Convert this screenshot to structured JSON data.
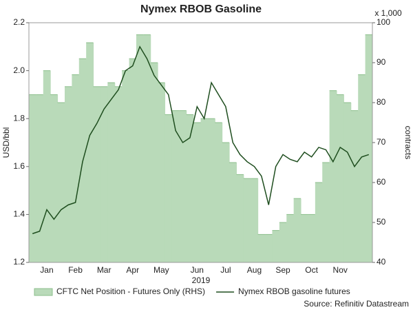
{
  "chart_data": {
    "type": "bar-line",
    "title": "Nymex RBOB Gasoline",
    "xlabel": "2019",
    "ylabel": "USD/bbl",
    "y2label": "contracts",
    "y2unit": "x 1,000",
    "source": "Source: Refinitiv Datastream",
    "legend": "bottom",
    "categories": [
      null,
      null,
      "Jan",
      null,
      null,
      null,
      "Feb",
      null,
      null,
      null,
      "Mar",
      null,
      null,
      null,
      "Apr",
      null,
      null,
      null,
      "May",
      null,
      null,
      null,
      null,
      "Jun",
      null,
      null,
      null,
      "Jul",
      null,
      null,
      null,
      "Aug",
      null,
      null,
      null,
      "Sep",
      null,
      null,
      null,
      "Oct",
      null,
      null,
      null,
      "Nov",
      null,
      null,
      null,
      null
    ],
    "ylim": [
      1.2,
      2.2
    ],
    "yticks": [
      1.2,
      1.4,
      1.6,
      1.8,
      {
        "value": 2,
        "label": "2.0"
      },
      2.2
    ],
    "y2lim": [
      40,
      100
    ],
    "y2ticks": [
      40,
      50,
      60,
      70,
      80,
      90,
      100
    ],
    "series": [
      {
        "name": "CFTC Net Position - Futures Only (RHS)",
        "color": "#b9dab9",
        "axis": "y2",
        "kind": "bar",
        "values": [
          82,
          82,
          88,
          82,
          80,
          84,
          87,
          91,
          95,
          84,
          84,
          85,
          84,
          88,
          91,
          97,
          97,
          90,
          85,
          77,
          78,
          78,
          77,
          75,
          76,
          76,
          75,
          70,
          65,
          62,
          61,
          61,
          47,
          47,
          48,
          50,
          52,
          56,
          52,
          52,
          60,
          65,
          83,
          82,
          80,
          78,
          87,
          97
        ]
      },
      {
        "name": "Nymex RBOB gasoline futures",
        "color": "#1e4d1e",
        "axis": "y",
        "kind": "line",
        "values": [
          1.32,
          1.33,
          1.42,
          1.38,
          1.42,
          1.44,
          1.45,
          1.62,
          1.73,
          1.78,
          1.84,
          1.88,
          1.92,
          2.0,
          2.02,
          2.1,
          2.05,
          1.98,
          1.94,
          1.9,
          1.75,
          1.7,
          1.72,
          1.85,
          1.8,
          1.95,
          1.9,
          1.85,
          1.7,
          1.65,
          1.62,
          1.6,
          1.56,
          1.44,
          1.6,
          1.65,
          1.63,
          1.62,
          1.66,
          1.64,
          1.68,
          1.67,
          1.62,
          1.68,
          1.66,
          1.6,
          1.64,
          1.65
        ]
      }
    ]
  }
}
